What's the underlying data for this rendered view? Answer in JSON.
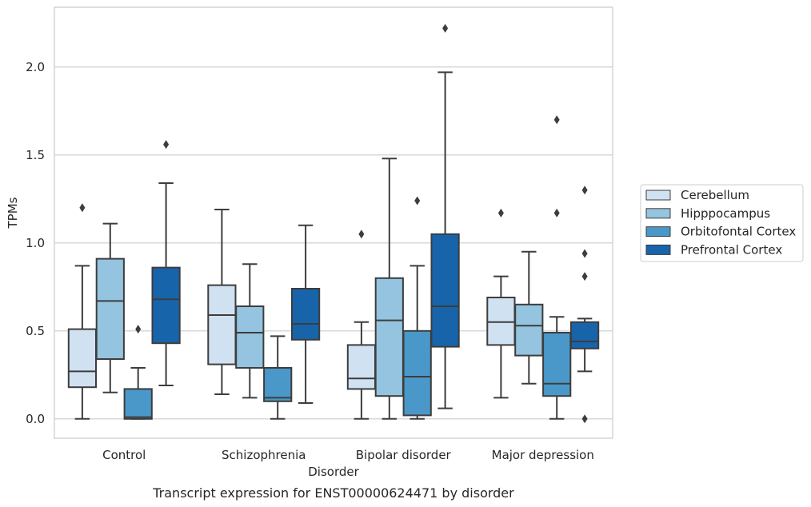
{
  "chart_data": {
    "type": "box",
    "xlabel": "Disorder",
    "ylabel": "TPMs",
    "caption": "Transcript expression for ENST00000624471 by disorder",
    "ylim": [
      -0.11,
      2.34
    ],
    "yticks": [
      0.0,
      0.5,
      1.0,
      1.5,
      2.0
    ],
    "ytick_labels": [
      "0.0",
      "0.5",
      "1.0",
      "1.5",
      "2.0"
    ],
    "grid": "horizontal",
    "legend_position": "right",
    "categories": [
      "Control",
      "Schizophrenia",
      "Bipolar disorder",
      "Major depression"
    ],
    "series": [
      {
        "name": "Cerebellum",
        "color": "#d0e1f2",
        "boxes": [
          {
            "whisker_low": 0.0,
            "q1": 0.18,
            "median": 0.27,
            "q3": 0.51,
            "whisker_high": 0.87,
            "outliers": [
              1.2
            ]
          },
          {
            "whisker_low": 0.14,
            "q1": 0.31,
            "median": 0.59,
            "q3": 0.76,
            "whisker_high": 1.19,
            "outliers": []
          },
          {
            "whisker_low": 0.0,
            "q1": 0.17,
            "median": 0.23,
            "q3": 0.42,
            "whisker_high": 0.55,
            "outliers": [
              1.05
            ]
          },
          {
            "whisker_low": 0.12,
            "q1": 0.42,
            "median": 0.55,
            "q3": 0.69,
            "whisker_high": 0.81,
            "outliers": [
              1.17
            ]
          }
        ]
      },
      {
        "name": "Hipppocampus",
        "color": "#94c4df",
        "boxes": [
          {
            "whisker_low": 0.15,
            "q1": 0.34,
            "median": 0.67,
            "q3": 0.91,
            "whisker_high": 1.11,
            "outliers": []
          },
          {
            "whisker_low": 0.12,
            "q1": 0.29,
            "median": 0.49,
            "q3": 0.64,
            "whisker_high": 0.88,
            "outliers": []
          },
          {
            "whisker_low": 0.0,
            "q1": 0.13,
            "median": 0.56,
            "q3": 0.8,
            "whisker_high": 1.48,
            "outliers": []
          },
          {
            "whisker_low": 0.2,
            "q1": 0.36,
            "median": 0.53,
            "q3": 0.65,
            "whisker_high": 0.95,
            "outliers": []
          }
        ]
      },
      {
        "name": "Orbitofontal Cortex",
        "color": "#4a98c9",
        "boxes": [
          {
            "whisker_low": 0.0,
            "q1": 0.0,
            "median": 0.01,
            "q3": 0.17,
            "whisker_high": 0.29,
            "outliers": [
              0.51
            ]
          },
          {
            "whisker_low": 0.0,
            "q1": 0.1,
            "median": 0.12,
            "q3": 0.29,
            "whisker_high": 0.47,
            "outliers": []
          },
          {
            "whisker_low": 0.0,
            "q1": 0.02,
            "median": 0.24,
            "q3": 0.5,
            "whisker_high": 0.87,
            "outliers": [
              1.24
            ]
          },
          {
            "whisker_low": 0.0,
            "q1": 0.13,
            "median": 0.2,
            "q3": 0.49,
            "whisker_high": 0.58,
            "outliers": [
              1.17,
              1.7
            ]
          }
        ]
      },
      {
        "name": "Prefrontal Cortex",
        "color": "#1764ab",
        "boxes": [
          {
            "whisker_low": 0.19,
            "q1": 0.43,
            "median": 0.68,
            "q3": 0.86,
            "whisker_high": 1.34,
            "outliers": [
              1.56
            ]
          },
          {
            "whisker_low": 0.09,
            "q1": 0.45,
            "median": 0.54,
            "q3": 0.74,
            "whisker_high": 1.1,
            "outliers": []
          },
          {
            "whisker_low": 0.06,
            "q1": 0.41,
            "median": 0.64,
            "q3": 1.05,
            "whisker_high": 1.97,
            "outliers": [
              2.22
            ]
          },
          {
            "whisker_low": 0.27,
            "q1": 0.4,
            "median": 0.44,
            "q3": 0.55,
            "whisker_high": 0.57,
            "outliers": [
              0.0,
              0.81,
              0.94,
              1.3
            ]
          }
        ]
      }
    ],
    "colors": {
      "edge": "#3d3d3d",
      "grid": "#cccccc",
      "frame": "#cccccc",
      "text": "#262626"
    }
  }
}
